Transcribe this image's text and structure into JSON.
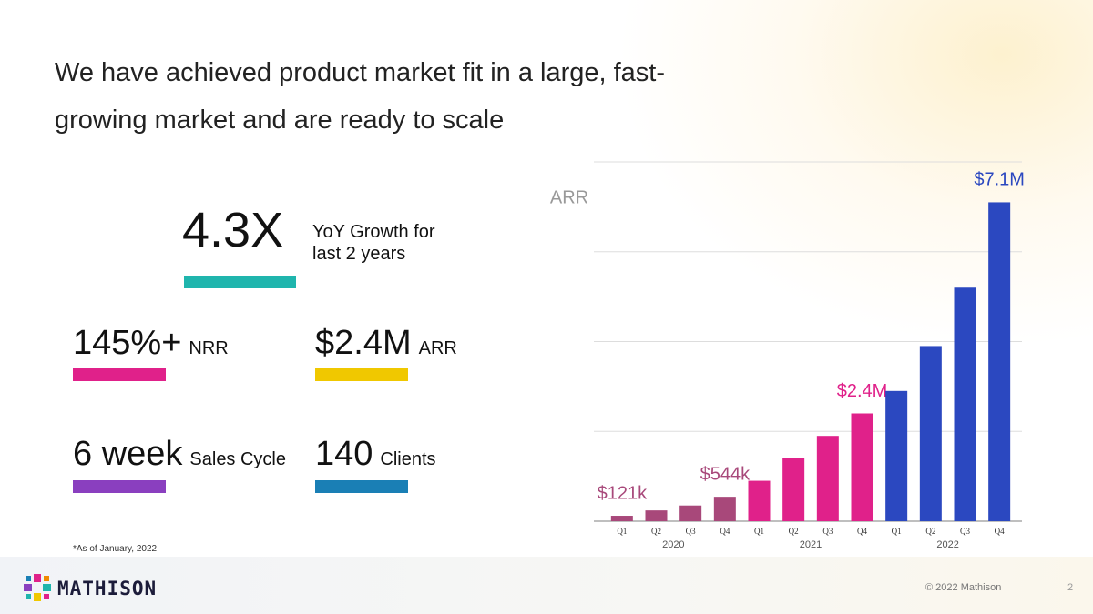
{
  "title": "We have achieved product market fit in a large, fast-growing market and are ready to scale",
  "kpis": [
    {
      "value": "4.3X",
      "label": "YoY Growth for last 2 years",
      "color": "#1fb5ad"
    },
    {
      "value": "145%+",
      "label": "NRR",
      "color": "#e0218a"
    },
    {
      "value": "$2.4M",
      "label": "ARR",
      "color": "#f0c800"
    },
    {
      "value": "6 week",
      "label": "Sales Cycle",
      "color": "#8a3fbf"
    },
    {
      "value": "140",
      "label": "Clients",
      "color": "#1a7fb5"
    }
  ],
  "footnote": "*As of January, 2022",
  "logo": "MATHISON",
  "footer": "© 2022 Mathison",
  "page_number": "2",
  "chart_data": {
    "type": "bar",
    "ylabel": "ARR",
    "categories": [
      "Q1",
      "Q2",
      "Q3",
      "Q4",
      "Q1",
      "Q2",
      "Q3",
      "Q4",
      "Q1",
      "Q2",
      "Q3",
      "Q4"
    ],
    "groups": [
      "2020",
      "2021",
      "2022"
    ],
    "values": [
      121000,
      240000,
      350000,
      544000,
      900000,
      1400000,
      1900000,
      2400000,
      2900000,
      3900000,
      5200000,
      7100000
    ],
    "value_labels": [
      "$121k",
      null,
      null,
      "$544k",
      null,
      null,
      null,
      "$2.4M",
      null,
      null,
      null,
      "$7.1M"
    ],
    "colors": [
      "#a8487a",
      "#a8487a",
      "#a8487a",
      "#a8487a",
      "#e0218a",
      "#e0218a",
      "#e0218a",
      "#e0218a",
      "#2b48c0",
      "#2b48c0",
      "#2b48c0",
      "#2b48c0"
    ],
    "ylim": [
      0,
      8000000
    ],
    "yticks": [
      0,
      2000000,
      4000000,
      6000000,
      8000000
    ],
    "grid": true
  }
}
